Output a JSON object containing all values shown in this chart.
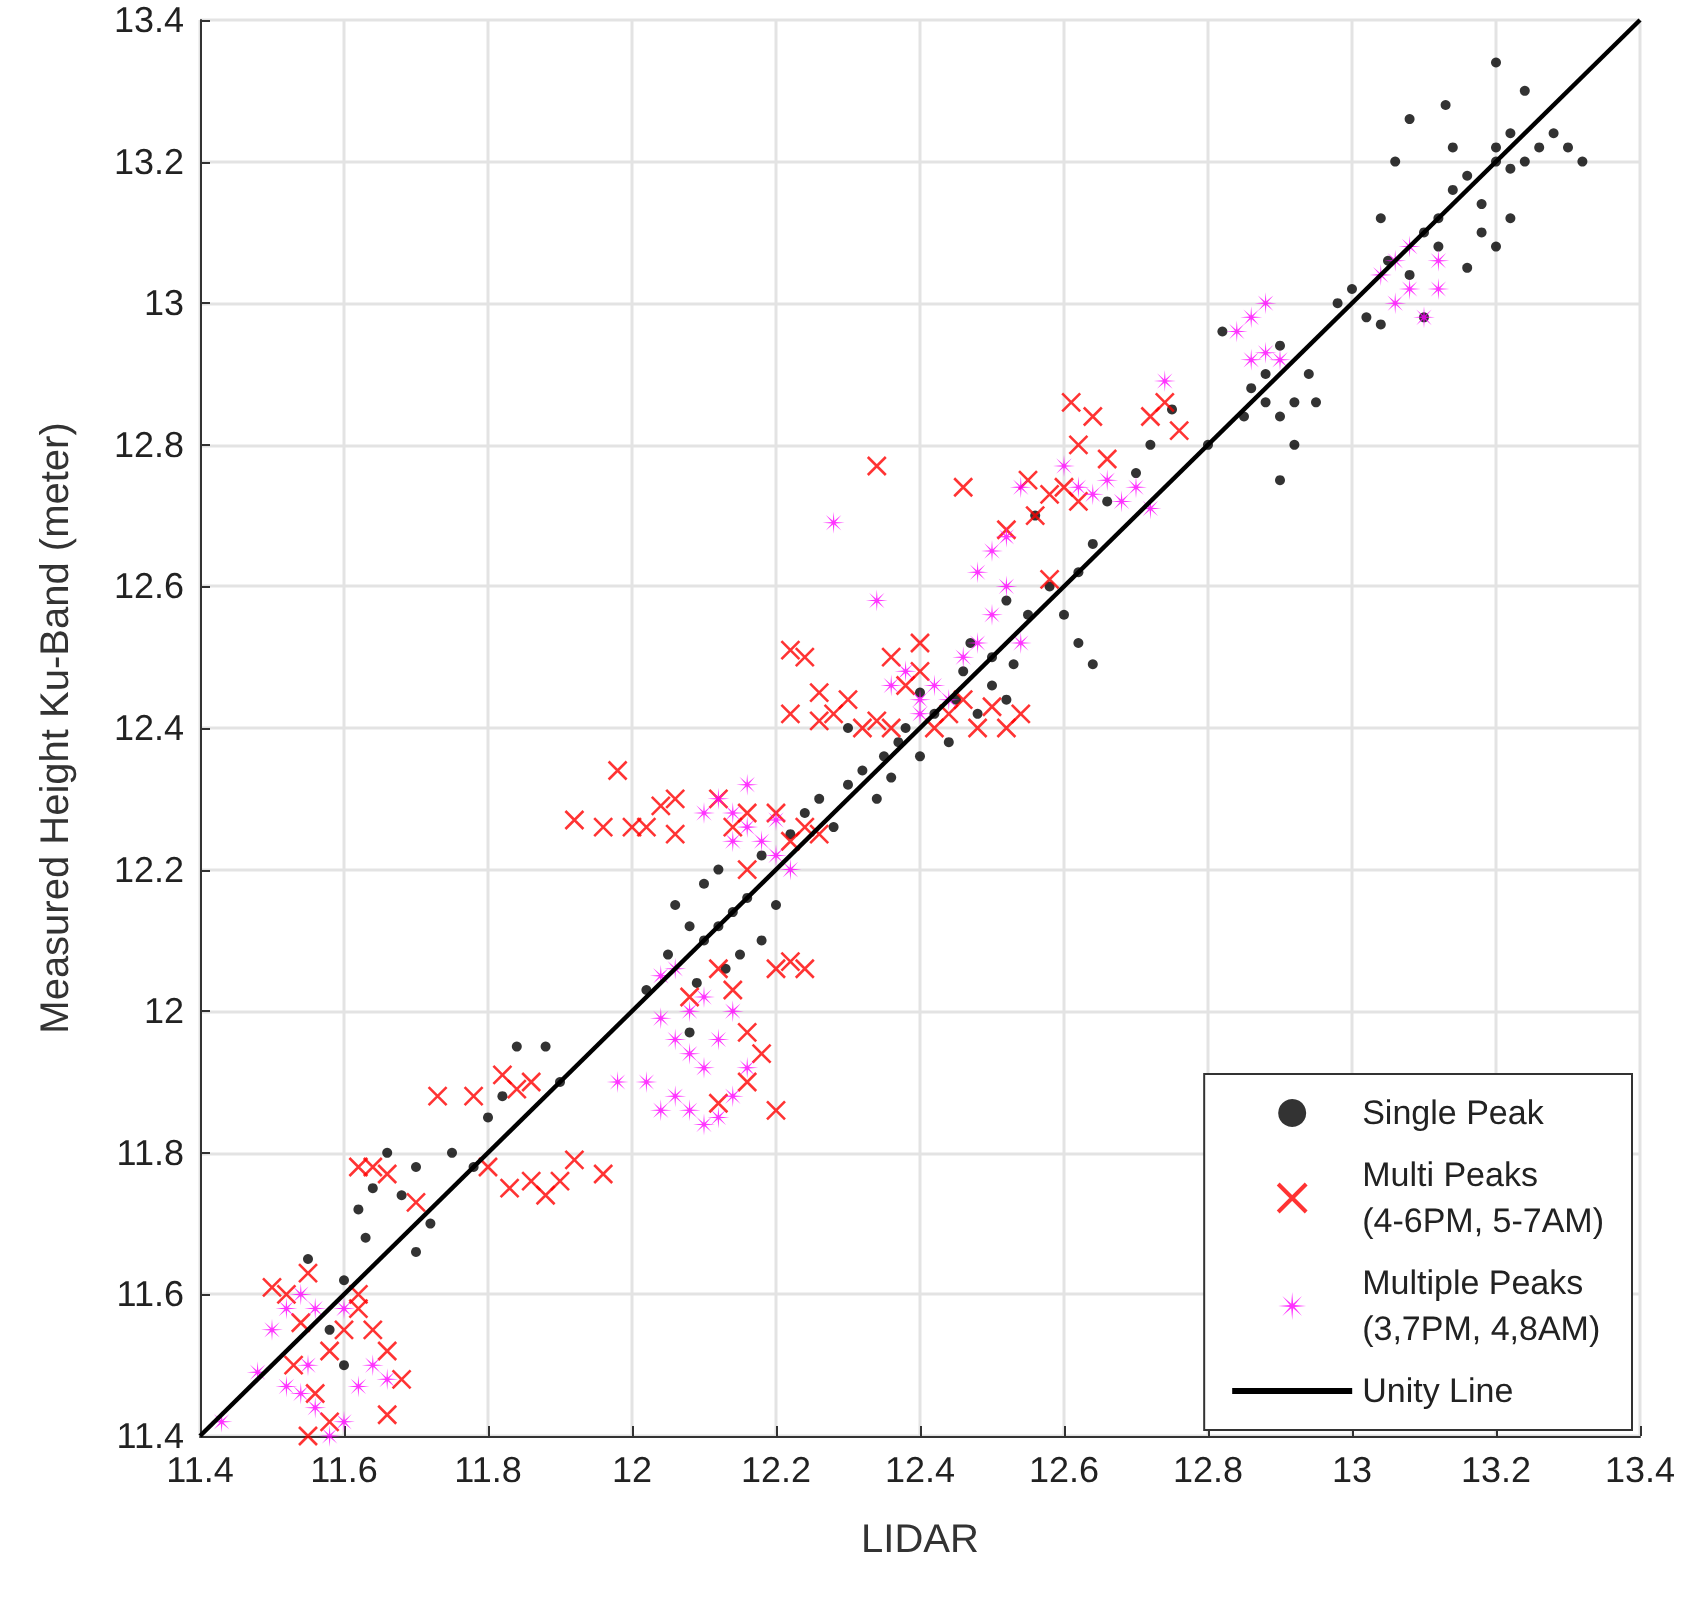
{
  "chart_data": {
    "type": "scatter",
    "xlabel": "LIDAR",
    "ylabel": "Measured Height Ku-Band (meter)",
    "xlim": [
      11.4,
      13.4
    ],
    "ylim": [
      11.4,
      13.4
    ],
    "xticks": [
      11.4,
      11.6,
      11.8,
      12,
      12.2,
      12.4,
      12.6,
      12.8,
      13,
      13.2,
      13.4
    ],
    "yticks": [
      11.4,
      11.6,
      11.8,
      12,
      12.2,
      12.4,
      12.6,
      12.8,
      13,
      13.2,
      13.4
    ],
    "grid": true,
    "legend": "bottom right",
    "series": [
      {
        "name": "Single Peak",
        "marker": "circle",
        "color": "#000000",
        "x": [
          11.62,
          11.64,
          11.66,
          11.68,
          11.7,
          11.72,
          11.75,
          11.78,
          11.82,
          11.84,
          11.88,
          11.9,
          11.8,
          11.7,
          11.6,
          11.63,
          11.58,
          11.6,
          11.55,
          12.05,
          12.06,
          12.08,
          12.1,
          12.1,
          12.12,
          12.12,
          12.14,
          12.15,
          12.16,
          12.18,
          12.2,
          12.18,
          12.09,
          12.13,
          12.02,
          12.08,
          12.22,
          12.24,
          12.26,
          12.28,
          12.3,
          12.32,
          12.34,
          12.35,
          12.37,
          12.38,
          12.4,
          12.42,
          12.4,
          12.44,
          12.45,
          12.46,
          12.48,
          12.5,
          12.5,
          12.52,
          12.53,
          12.47,
          12.3,
          12.36,
          12.52,
          12.55,
          12.58,
          12.6,
          12.62,
          12.64,
          12.66,
          12.7,
          12.72,
          12.62,
          12.64,
          12.56,
          12.75,
          12.8,
          12.85,
          12.86,
          12.88,
          12.9,
          12.92,
          12.92,
          12.88,
          12.82,
          12.9,
          12.94,
          12.95,
          12.9,
          12.98,
          13,
          13.02,
          13.04,
          13.05,
          13.08,
          13.1,
          13.12,
          13.12,
          13.14,
          13.16,
          13.16,
          13.18,
          13.18,
          13.2,
          13.2,
          13.22,
          13.22,
          13.24,
          13.26,
          13.28,
          13.3,
          13.32,
          13.14,
          13.13,
          13.24,
          13.2,
          13.08,
          13.06,
          13.1,
          13.04,
          13.22,
          13.2
        ],
        "values": [
          11.72,
          11.75,
          11.8,
          11.74,
          11.78,
          11.7,
          11.8,
          11.78,
          11.88,
          11.95,
          11.95,
          11.9,
          11.85,
          11.66,
          11.62,
          11.68,
          11.55,
          11.5,
          11.65,
          12.08,
          12.15,
          12.12,
          12.1,
          12.18,
          12.12,
          12.2,
          12.14,
          12.08,
          12.16,
          12.1,
          12.15,
          12.22,
          12.04,
          12.06,
          12.03,
          11.97,
          12.25,
          12.28,
          12.3,
          12.26,
          12.32,
          12.34,
          12.3,
          12.36,
          12.38,
          12.4,
          12.36,
          12.42,
          12.45,
          12.38,
          12.44,
          12.48,
          12.42,
          12.46,
          12.5,
          12.44,
          12.49,
          12.52,
          12.4,
          12.33,
          12.58,
          12.56,
          12.6,
          12.56,
          12.62,
          12.66,
          12.72,
          12.76,
          12.8,
          12.52,
          12.49,
          12.7,
          12.85,
          12.8,
          12.84,
          12.88,
          12.86,
          12.84,
          12.86,
          12.8,
          12.9,
          12.96,
          12.94,
          12.9,
          12.86,
          12.75,
          13,
          13.02,
          12.98,
          12.97,
          13.06,
          13.04,
          13.1,
          13.12,
          13.08,
          13.16,
          13.18,
          13.05,
          13.1,
          13.14,
          13.22,
          13.2,
          13.24,
          13.19,
          13.2,
          13.22,
          13.24,
          13.22,
          13.2,
          13.22,
          13.28,
          13.3,
          13.34,
          13.26,
          13.2,
          12.98,
          13.12,
          13.12,
          13.08
        ]
      },
      {
        "name": "Multi Peaks\n(4-6PM, 5-7AM)",
        "marker": "cross",
        "color": "#ff0000",
        "x": [
          11.5,
          11.52,
          11.54,
          11.55,
          11.53,
          11.56,
          11.58,
          11.6,
          11.62,
          11.64,
          11.66,
          11.68,
          11.66,
          11.62,
          11.55,
          11.58,
          11.64,
          11.66,
          11.62,
          11.7,
          11.73,
          11.78,
          11.82,
          11.84,
          11.86,
          11.83,
          11.86,
          11.9,
          11.92,
          11.96,
          11.8,
          11.88,
          11.96,
          11.98,
          12,
          12.02,
          12.04,
          12.06,
          12.06,
          11.92,
          12.12,
          12.14,
          12.16,
          12.2,
          12.22,
          12.24,
          12.26,
          12.16,
          12.2,
          12.22,
          12.24,
          12.12,
          12.14,
          12.16,
          12.18,
          12.16,
          12.2,
          12.12,
          12.08,
          12.22,
          12.24,
          12.26,
          12.28,
          12.3,
          12.32,
          12.34,
          12.36,
          12.38,
          12.4,
          12.42,
          12.44,
          12.46,
          12.48,
          12.5,
          12.52,
          12.54,
          12.36,
          12.26,
          12.22,
          12.4,
          12.58,
          12.34,
          12.46,
          12.55,
          12.58,
          12.6,
          12.62,
          12.61,
          12.62,
          12.66,
          12.72,
          12.74,
          12.76,
          12.52,
          12.56,
          12.64
        ],
        "values": [
          11.61,
          11.6,
          11.56,
          11.63,
          11.5,
          11.46,
          11.52,
          11.55,
          11.58,
          11.55,
          11.52,
          11.48,
          11.43,
          11.6,
          11.4,
          11.42,
          11.78,
          11.77,
          11.78,
          11.73,
          11.88,
          11.88,
          11.91,
          11.89,
          11.9,
          11.75,
          11.76,
          11.76,
          11.79,
          11.77,
          11.78,
          11.74,
          12.26,
          12.34,
          12.26,
          12.26,
          12.29,
          12.3,
          12.25,
          12.27,
          12.3,
          12.26,
          12.28,
          12.28,
          12.24,
          12.26,
          12.25,
          12.2,
          12.06,
          12.07,
          12.06,
          12.06,
          12.03,
          11.97,
          11.94,
          11.9,
          11.86,
          11.87,
          12.02,
          12.51,
          12.5,
          12.45,
          12.42,
          12.44,
          12.4,
          12.41,
          12.4,
          12.46,
          12.48,
          12.4,
          12.42,
          12.44,
          12.4,
          12.43,
          12.4,
          12.42,
          12.5,
          12.41,
          12.42,
          12.52,
          12.61,
          12.77,
          12.74,
          12.75,
          12.73,
          12.74,
          12.72,
          12.86,
          12.8,
          12.78,
          12.84,
          12.86,
          12.82,
          12.68,
          12.7,
          12.84
        ]
      },
      {
        "name": "Multiple Peaks\n(3,7PM, 4,8AM)",
        "marker": "star",
        "color": "#ff00ff",
        "x": [
          11.43,
          11.48,
          11.5,
          11.52,
          11.52,
          11.54,
          11.55,
          11.56,
          11.58,
          11.6,
          11.62,
          11.64,
          11.66,
          11.56,
          11.6,
          11.54,
          11.98,
          12.02,
          12.04,
          12.06,
          12.08,
          12.1,
          12.12,
          12.14,
          12.16,
          12.04,
          12.06,
          12.08,
          12.1,
          12.12,
          12.14,
          12.1,
          12.06,
          12.04,
          12.08,
          12.1,
          12.12,
          12.14,
          12.16,
          12.16,
          12.18,
          12.2,
          12.2,
          12.22,
          12.14,
          12.28,
          12.34,
          12.38,
          12.4,
          12.42,
          12.44,
          12.46,
          12.48,
          12.5,
          12.52,
          12.5,
          12.52,
          12.54,
          12.36,
          12.4,
          12.48,
          12.54,
          12.6,
          12.62,
          12.66,
          12.68,
          12.7,
          12.72,
          12.74,
          12.64,
          12.84,
          12.86,
          12.88,
          12.88,
          12.86,
          12.9,
          13.04,
          13.06,
          13.08,
          13.08,
          13.1,
          13.12,
          13.06,
          13.12
        ],
        "values": [
          11.42,
          11.49,
          11.55,
          11.58,
          11.47,
          11.46,
          11.5,
          11.44,
          11.4,
          11.42,
          11.47,
          11.5,
          11.48,
          11.58,
          11.58,
          11.6,
          11.9,
          11.9,
          11.86,
          11.88,
          11.86,
          11.84,
          11.85,
          11.88,
          11.92,
          11.99,
          11.96,
          11.94,
          11.92,
          11.96,
          12,
          12.02,
          12.06,
          12.05,
          12,
          12.28,
          12.3,
          12.24,
          12.32,
          12.26,
          12.24,
          12.27,
          12.22,
          12.2,
          12.28,
          12.69,
          12.58,
          12.48,
          12.44,
          12.46,
          12.44,
          12.5,
          12.52,
          12.56,
          12.6,
          12.65,
          12.67,
          12.52,
          12.46,
          12.42,
          12.62,
          12.74,
          12.77,
          12.74,
          12.75,
          12.72,
          12.74,
          12.71,
          12.89,
          12.73,
          12.96,
          12.98,
          13,
          12.93,
          12.92,
          12.92,
          13.04,
          13.06,
          13.08,
          13.02,
          12.98,
          13.02,
          13,
          13.06
        ]
      },
      {
        "name": "Unity Line",
        "type": "line",
        "marker": "none",
        "line_style": "solid",
        "color": "#000000",
        "x": [
          11.4,
          13.4
        ],
        "values": [
          11.4,
          13.4
        ]
      }
    ]
  }
}
